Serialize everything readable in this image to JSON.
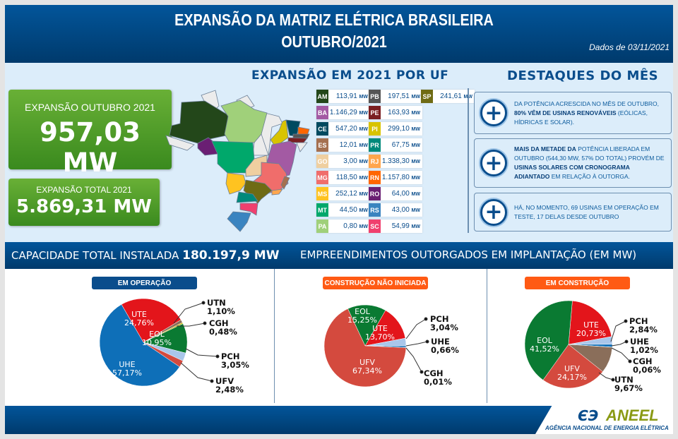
{
  "header": {
    "title_line1": "EXPANSÃO DA MATRIZ ELÉTRICA BRASILEIRA",
    "title_line2": "OUTUBRO/2021",
    "date": "Dados de 03/11/2021"
  },
  "kpis": {
    "month_label": "EXPANSÃO OUTUBRO 2021",
    "month_value": "957,03 MW",
    "total_label": "EXPANSÃO TOTAL 2021",
    "total_value": "5.869,31 MW"
  },
  "uf_section": {
    "title": "EXPANSÃO EM 2021 POR UF",
    "unit": "MW",
    "states": [
      {
        "code": "AM",
        "value": "113,91",
        "color": "#23471a"
      },
      {
        "code": "BA",
        "value": "1.146,29",
        "color": "#a35aa3"
      },
      {
        "code": "CE",
        "value": "547,20",
        "color": "#004a60"
      },
      {
        "code": "ES",
        "value": "12,01",
        "color": "#a57050"
      },
      {
        "code": "GO",
        "value": "3,00",
        "color": "#efcfa0"
      },
      {
        "code": "MG",
        "value": "118,50",
        "color": "#f06d6b"
      },
      {
        "code": "MS",
        "value": "252,12",
        "color": "#ffc320"
      },
      {
        "code": "MT",
        "value": "44,50",
        "color": "#00a86b"
      },
      {
        "code": "PA",
        "value": "0,80",
        "color": "#a0d07a"
      },
      {
        "code": "PB",
        "value": "197,51",
        "color": "#555555"
      },
      {
        "code": "PE",
        "value": "163,93",
        "color": "#7a1f22"
      },
      {
        "code": "PI",
        "value": "299,10",
        "color": "#d8c300"
      },
      {
        "code": "PR",
        "value": "67,75",
        "color": "#00897b"
      },
      {
        "code": "RJ",
        "value": "1.338,30",
        "color": "#ffa64d"
      },
      {
        "code": "RN",
        "value": "1.157,80",
        "color": "#ff6600"
      },
      {
        "code": "RO",
        "value": "64,00",
        "color": "#6a1f73"
      },
      {
        "code": "RS",
        "value": "43,00",
        "color": "#3a84c0"
      },
      {
        "code": "SC",
        "value": "54,99",
        "color": "#f0406e"
      },
      {
        "code": "SP",
        "value": "241,61",
        "color": "#6f6b14"
      }
    ]
  },
  "highlights": {
    "title": "DESTAQUES DO MÊS",
    "items": [
      {
        "icon": "plus-icon",
        "parts": [
          {
            "t": "DA POTÊNCIA ACRESCIDA NO MÊS DE OUTUBRO, ",
            "b": false
          },
          {
            "t": "80% VÊM DE USINAS RENOVÁVEIS",
            "b": true
          },
          {
            "t": " (EÓLICAS, HÍDRICAS E SOLAR).",
            "b": false
          }
        ]
      },
      {
        "icon": "plus-icon",
        "parts": [
          {
            "t": "MAIS DA METADE DA",
            "b": true
          },
          {
            "t": " POTÊNCIA LIBERADA EM OUTUBRO (544,30 MW, 57% DO TOTAL) PROVÉM DE ",
            "b": false
          },
          {
            "t": "USINAS SOLARES COM CRONOGRAMA ADIANTADO",
            "b": true
          },
          {
            "t": " EM RELAÇÃO À OUTORGA.",
            "b": false
          }
        ]
      },
      {
        "icon": "plus-icon",
        "parts": [
          {
            "t": "HÁ, NO MOMENTO, 69 USINAS EM OPERAÇÃO EM TESTE, 17 DELAS DESDE OUTUBRO",
            "b": false
          }
        ]
      }
    ]
  },
  "band": {
    "capacity_label": "CAPACIDADE TOTAL INSTALADA",
    "capacity_value": "180.197,9 MW",
    "outorgados_title": "EMPREENDIMENTOS OUTORGADOS EM IMPLANTAÇÃO (EM MW)"
  },
  "colors": {
    "UTE": "#e3151b",
    "UHE": "#0e6fb8",
    "EOL": "#0a7a32",
    "PCH": "#a9c6ea",
    "UFV": "#d44a3e",
    "UTN": "#8a6e5a",
    "CGH": "#c8b400",
    "blue_pill": "#0a4d8c",
    "orange_pill": "#ff5a14"
  },
  "chart_data": [
    {
      "type": "pie",
      "title": "EM OPERAÇÃO",
      "slices": [
        {
          "label": "UTE",
          "value": 24.76,
          "text": "24,76%"
        },
        {
          "label": "UTN",
          "value": 1.1,
          "text": "1,10%"
        },
        {
          "label": "CGH",
          "value": 0.48,
          "text": "0,48%"
        },
        {
          "label": "EOL",
          "value": 10.95,
          "text": "10,95%"
        },
        {
          "label": "PCH",
          "value": 3.05,
          "text": "3,05%"
        },
        {
          "label": "UFV",
          "value": 2.48,
          "text": "2,48%"
        },
        {
          "label": "UHE",
          "value": 57.17,
          "text": "57,17%"
        }
      ]
    },
    {
      "type": "pie",
      "title": "CONSTRUÇÃO NÃO INICIADA",
      "slices": [
        {
          "label": "EOL",
          "value": 15.25,
          "text": "15,25%"
        },
        {
          "label": "UTE",
          "value": 13.7,
          "text": "13,70%"
        },
        {
          "label": "PCH",
          "value": 3.04,
          "text": "3,04%"
        },
        {
          "label": "UHE",
          "value": 0.66,
          "text": "0,66%"
        },
        {
          "label": "CGH",
          "value": 0.01,
          "text": "0,01%"
        },
        {
          "label": "UFV",
          "value": 67.34,
          "text": "67,34%"
        }
      ]
    },
    {
      "type": "pie",
      "title": "EM CONSTRUÇÃO",
      "slices": [
        {
          "label": "UTE",
          "value": 20.73,
          "text": "20,73%"
        },
        {
          "label": "PCH",
          "value": 2.84,
          "text": "2,84%"
        },
        {
          "label": "UHE",
          "value": 1.02,
          "text": "1,02%"
        },
        {
          "label": "CGH",
          "value": 0.06,
          "text": "0,06%"
        },
        {
          "label": "UTN",
          "value": 9.67,
          "text": "9,67%"
        },
        {
          "label": "UFV",
          "value": 24.17,
          "text": "24,17%"
        },
        {
          "label": "EOL",
          "value": 41.52,
          "text": "41,52%"
        }
      ]
    }
  ],
  "footer": {
    "logo_text": "ANEEL",
    "logo_subtitle": "AGÊNCIA NACIONAL DE ENERGIA ELÉTRICA"
  }
}
